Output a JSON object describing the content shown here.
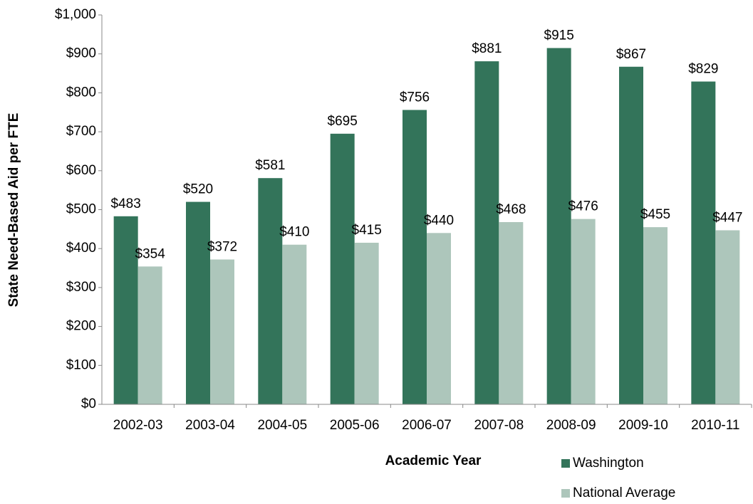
{
  "chart_data": {
    "type": "bar",
    "x_label": "Academic Year",
    "y_label": "State Need-Based Aid per FTE",
    "categories": [
      "2002-03",
      "2003-04",
      "2004-05",
      "2005-06",
      "2006-07",
      "2007-08",
      "2008-09",
      "2009-10",
      "2010-11"
    ],
    "series": [
      {
        "name": "Washington",
        "color": "#33745a",
        "values": [
          483,
          520,
          581,
          695,
          756,
          881,
          915,
          867,
          829
        ],
        "value_labels": [
          "$483",
          "$520",
          "$581",
          "$695",
          "$756",
          "$881",
          "$915",
          "$867",
          "$829"
        ]
      },
      {
        "name": "National Average",
        "color": "#adc6bb",
        "values": [
          354,
          372,
          410,
          415,
          440,
          468,
          476,
          455,
          447
        ],
        "value_labels": [
          "$354",
          "$372",
          "$410",
          "$415",
          "$440",
          "$468",
          "$476",
          "$455",
          "$447"
        ]
      }
    ],
    "ylim": [
      0,
      1000
    ],
    "yticks": [
      {
        "value": 0,
        "label": "$0"
      },
      {
        "value": 100,
        "label": "$100"
      },
      {
        "value": 200,
        "label": "$200"
      },
      {
        "value": 300,
        "label": "$300"
      },
      {
        "value": 400,
        "label": "$400"
      },
      {
        "value": 500,
        "label": "$500"
      },
      {
        "value": 600,
        "label": "$600"
      },
      {
        "value": 700,
        "label": "$700"
      },
      {
        "value": 800,
        "label": "$800"
      },
      {
        "value": 900,
        "label": "$900"
      },
      {
        "value": 1000,
        "label": "$1,000"
      }
    ],
    "grid": false,
    "legend": "bottom"
  }
}
